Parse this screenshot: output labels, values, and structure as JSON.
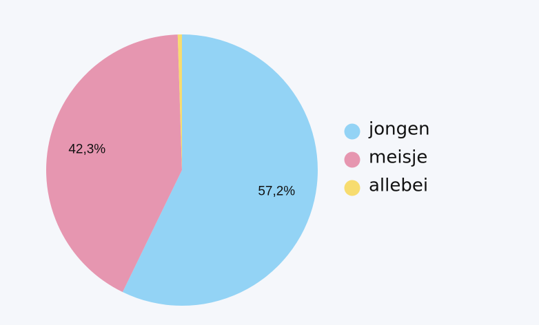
{
  "chart_data": {
    "type": "pie",
    "categories": [
      "jongen",
      "meisje",
      "allebei"
    ],
    "values": [
      57.2,
      42.3,
      0.5
    ],
    "value_labels": [
      "57,2%",
      "42,3%",
      null
    ],
    "colors": [
      "#93d3f5",
      "#e696b0",
      "#f7dc6f"
    ],
    "legend": "right"
  }
}
